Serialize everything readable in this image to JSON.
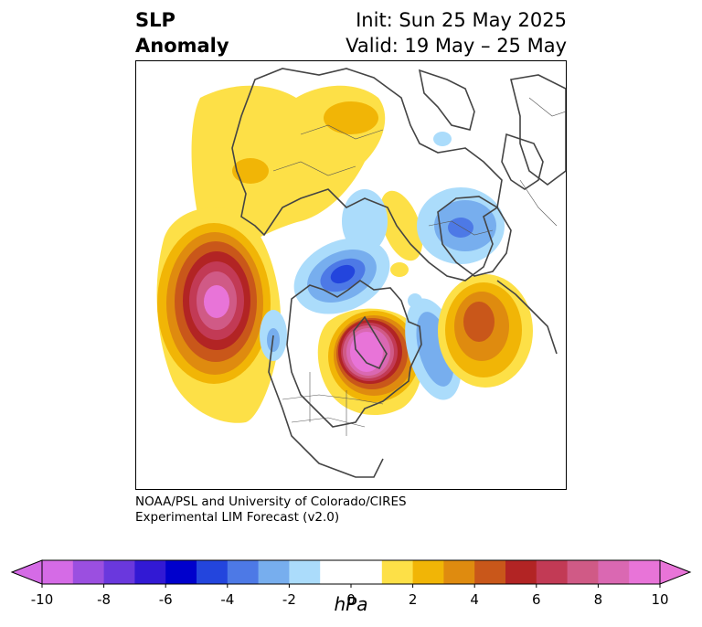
{
  "title": {
    "left_line1": "SLP",
    "left_line2": "Anomaly",
    "right_line1": "Init: Sun 25 May 2025",
    "right_line2": "Valid: 19 May – 25 May"
  },
  "credit": {
    "line1": "NOAA/PSL and University of Colorado/CIRES",
    "line2": "Experimental LIM Forecast (v2.0)"
  },
  "colorbar": {
    "unit": "hPa",
    "ticks": [
      "-10",
      "-8",
      "-6",
      "-4",
      "-2",
      "0",
      "2",
      "4",
      "6",
      "8",
      "10"
    ],
    "colors": [
      "#d56be6",
      "#9b4fe0",
      "#6a38dd",
      "#3219d4",
      "#0000cc",
      "#2345dd",
      "#4d79e6",
      "#77aeee",
      "#abdcfb",
      "#ffffff",
      "#ffffff",
      "#fde047",
      "#f1b506",
      "#df8b0f",
      "#c9571a",
      "#b22424",
      "#c23a55",
      "#d05a86",
      "#da68b2",
      "#e874d8"
    ],
    "range": [
      -10,
      10
    ]
  },
  "anomalies": [
    {
      "name": "north-pacific-high",
      "sign": "positive",
      "peak_hPa": 10
    },
    {
      "name": "hudson-bay-high",
      "sign": "positive",
      "peak_hPa": 10
    },
    {
      "name": "north-atlantic-high",
      "sign": "positive",
      "peak_hPa": 5
    },
    {
      "name": "russia-high",
      "sign": "positive",
      "peak_hPa": 2
    },
    {
      "name": "arctic-low",
      "sign": "negative",
      "peak_hPa": -6
    },
    {
      "name": "europe-low",
      "sign": "negative",
      "peak_hPa": -3
    },
    {
      "name": "west-atlantic-low",
      "sign": "negative",
      "peak_hPa": -3
    }
  ]
}
